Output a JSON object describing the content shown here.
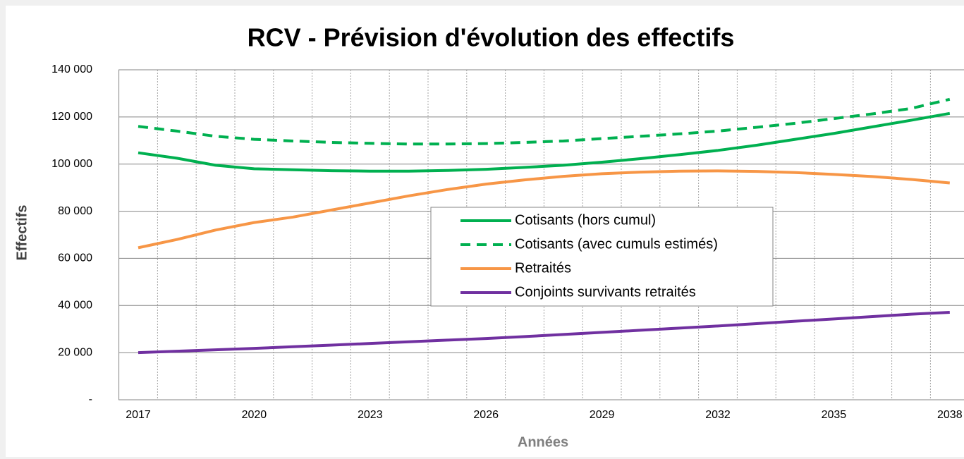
{
  "chart_data": {
    "type": "line",
    "title": "RCV - Prévision d'évolution des effectifs",
    "x_label": "Années",
    "y_label": "Effectifs",
    "categories": [
      2017,
      null,
      null,
      2020,
      null,
      null,
      2023,
      null,
      null,
      2026,
      null,
      null,
      2029,
      null,
      null,
      2032,
      null,
      null,
      2035,
      null,
      null,
      2038
    ],
    "ylim": [
      0,
      140000
    ],
    "yticks": [
      {
        "value": 0,
        "label": "-"
      },
      {
        "value": 20000,
        "label": "20 000"
      },
      {
        "value": 40000,
        "label": "40 000"
      },
      {
        "value": 60000,
        "label": "60 000"
      },
      {
        "value": 80000,
        "label": "80 000"
      },
      {
        "value": 100000,
        "label": "100 000"
      },
      {
        "value": 120000,
        "label": "120 000"
      },
      {
        "value": 140000,
        "label": "140 000"
      }
    ],
    "grid": true,
    "series": [
      {
        "name": "Cotisants (hors cumul)",
        "color": "#00b050",
        "dashed": false,
        "values": [
          104800,
          102500,
          99500,
          98000,
          97600,
          97200,
          97000,
          97000,
          97300,
          97800,
          98600,
          99500,
          100800,
          102300,
          104000,
          105800,
          108000,
          110500,
          113000,
          115800,
          118600,
          121500
        ]
      },
      {
        "name": "Cotisants (avec cumuls estimés)",
        "color": "#00b050",
        "dashed": true,
        "values": [
          116000,
          114000,
          111800,
          110500,
          109800,
          109200,
          108800,
          108500,
          108500,
          108700,
          109200,
          109800,
          110800,
          111800,
          112800,
          114000,
          115600,
          117300,
          119300,
          121300,
          123600,
          127500
        ]
      },
      {
        "name": "Retraités",
        "color": "#f79646",
        "dashed": false,
        "values": [
          64500,
          68000,
          72000,
          75200,
          77500,
          80500,
          83500,
          86500,
          89200,
          91500,
          93300,
          94800,
          95900,
          96600,
          97000,
          97100,
          96900,
          96400,
          95600,
          94700,
          93500,
          92000
        ]
      },
      {
        "name": "Conjoints survivants retraités",
        "color": "#7030a0",
        "dashed": false,
        "values": [
          20000,
          20600,
          21200,
          21800,
          22500,
          23200,
          23900,
          24600,
          25300,
          26000,
          26800,
          27700,
          28600,
          29500,
          30400,
          31300,
          32300,
          33300,
          34300,
          35300,
          36300,
          37100
        ]
      }
    ]
  }
}
